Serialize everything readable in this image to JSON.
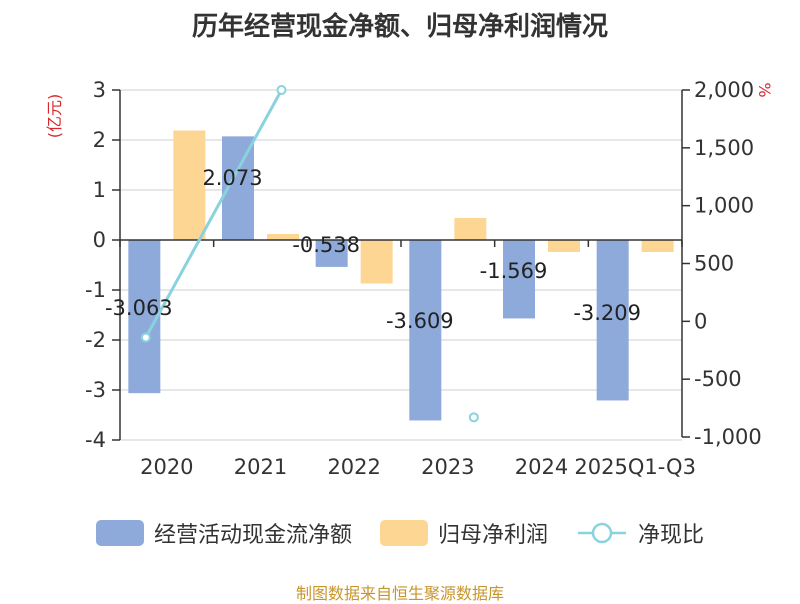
{
  "chart_data": {
    "type": "bar",
    "title": "历年经营现金净额、归母净利润情况",
    "categories": [
      "2020",
      "2021",
      "2022",
      "2023",
      "2024",
      "2025Q1-Q3"
    ],
    "left_axis": {
      "unit": "(亿元)",
      "ylim": [
        -4,
        3
      ],
      "ticks": [
        3,
        2,
        1,
        0,
        -1,
        -2,
        -3,
        -4
      ]
    },
    "right_axis": {
      "unit": "%",
      "ylim": [
        -1000,
        2000
      ],
      "ticks": [
        "2,000",
        "1,500",
        "1,000",
        "500",
        "0",
        "-500",
        "-1,000"
      ],
      "tick_values": [
        2000,
        1500,
        1000,
        500,
        0,
        -500,
        -1000
      ]
    },
    "series": [
      {
        "name": "经营活动现金流净额",
        "type": "bar",
        "axis": "left",
        "color": "#8eaadb",
        "values": [
          -3.063,
          2.073,
          -0.538,
          -3.609,
          -1.569,
          -3.209
        ],
        "labels": [
          "-3.063",
          "2.073",
          "-0.538",
          "-3.609",
          "-1.569",
          "-3.209"
        ]
      },
      {
        "name": "归母净利润",
        "type": "bar",
        "axis": "left",
        "color": "#fdd694",
        "values": [
          2.19,
          0.12,
          -0.87,
          0.44,
          -0.24,
          -0.24
        ]
      },
      {
        "name": "净现比",
        "type": "line",
        "axis": "right",
        "color": "#89d3de",
        "values": [
          -140,
          2000,
          null,
          -830,
          null,
          null
        ]
      }
    ],
    "grid": true,
    "legend_position": "bottom"
  },
  "source_note": "制图数据来自恒生聚源数据库"
}
